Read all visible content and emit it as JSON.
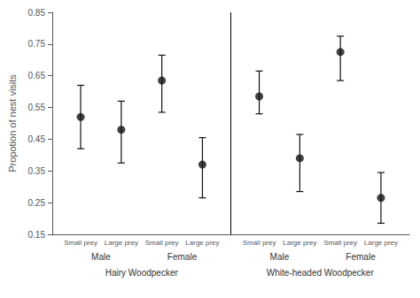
{
  "chart_data": {
    "type": "scatter",
    "ylabel": "Propotion of nest visits",
    "x": [
      1,
      2,
      3,
      4,
      5.4,
      6.4,
      7.4,
      8.4
    ],
    "values": [
      0.52,
      0.48,
      0.635,
      0.37,
      0.585,
      0.39,
      0.725,
      0.265
    ],
    "error_low": [
      0.42,
      0.375,
      0.535,
      0.265,
      0.53,
      0.285,
      0.635,
      0.185
    ],
    "error_high": [
      0.62,
      0.57,
      0.715,
      0.455,
      0.665,
      0.465,
      0.775,
      0.345
    ],
    "color": "#111111",
    "marker": "circle",
    "xlim": [
      0.3,
      9.1
    ],
    "xticks": [
      {
        "value": 1,
        "label": "Small prey"
      },
      {
        "value": 2,
        "label": "Large prey"
      },
      {
        "value": 3,
        "label": "Small prey"
      },
      {
        "value": 4,
        "label": "Large prey"
      },
      {
        "value": 5.4,
        "label": "Small prey"
      },
      {
        "value": 6.4,
        "label": "Large prey"
      },
      {
        "value": 7.4,
        "label": "Small prey"
      },
      {
        "value": 8.4,
        "label": "Large prey"
      }
    ],
    "ylim": [
      0.15,
      0.85
    ],
    "yticks": [
      0.15,
      0.25,
      0.35,
      0.45,
      0.55,
      0.65,
      0.75,
      0.85
    ],
    "divider_x": 4.7,
    "group_labels": [
      {
        "text": "Male",
        "x": 1.5
      },
      {
        "text": "Female",
        "x": 3.5
      },
      {
        "text": "Male",
        "x": 5.9
      },
      {
        "text": "Female",
        "x": 7.9
      }
    ],
    "species_labels": [
      {
        "text": "Hairy Woodpecker",
        "x": 2.5
      },
      {
        "text": "White-headed Woodpecker",
        "x": 6.9
      }
    ],
    "grid": false
  }
}
